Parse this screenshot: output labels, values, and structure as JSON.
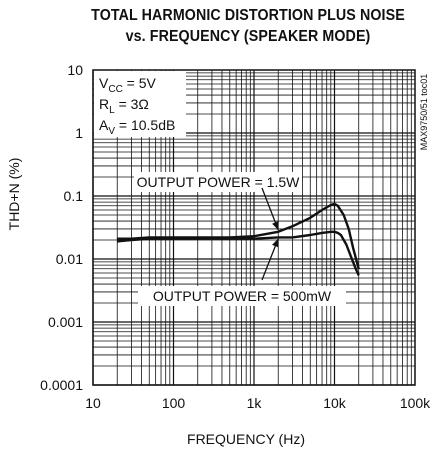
{
  "chart_data": {
    "type": "line",
    "title": [
      "TOTAL HARMONIC DISTORTION PLUS NOISE",
      "vs. FREQUENCY (SPEAKER MODE)"
    ],
    "xlabel": "FREQUENCY (Hz)",
    "ylabel": "THD+N (%)",
    "x_scale": "log",
    "y_scale": "log",
    "xlim": [
      10,
      100000
    ],
    "ylim": [
      0.0001,
      10
    ],
    "x_ticks": [
      10,
      100,
      1000,
      10000,
      100000
    ],
    "x_tick_labels": [
      "10",
      "100",
      "1k",
      "10k",
      "100k"
    ],
    "y_ticks": [
      0.0001,
      0.001,
      0.01,
      0.1,
      1,
      10
    ],
    "y_tick_labels": [
      "0.0001",
      "0.001",
      "0.01",
      "0.1",
      "1",
      "10"
    ],
    "grid": true,
    "conditions": [
      {
        "main": "V",
        "sub": "CC",
        "rest": " = 5V"
      },
      {
        "main": "R",
        "sub": "L",
        "rest": " = 3Ω"
      },
      {
        "main": "A",
        "sub": "V",
        "rest": " = 10.5dB"
      }
    ],
    "part_number": "MAX9750/51 toc01",
    "series": [
      {
        "name": "OUTPUT POWER = 1.5W",
        "x": [
          20,
          30,
          50,
          100,
          200,
          500,
          1000,
          2000,
          3000,
          5000,
          7000,
          9000,
          10000,
          11000,
          13000,
          15000,
          17000,
          20000
        ],
        "y": [
          0.021,
          0.021,
          0.022,
          0.022,
          0.022,
          0.022,
          0.023,
          0.027,
          0.033,
          0.045,
          0.06,
          0.072,
          0.075,
          0.07,
          0.05,
          0.03,
          0.015,
          0.007
        ]
      },
      {
        "name": "OUTPUT POWER = 500mW",
        "x": [
          20,
          30,
          50,
          100,
          200,
          500,
          1000,
          2000,
          3000,
          5000,
          7000,
          9000,
          10000,
          11000,
          12000,
          14000,
          16000,
          18000,
          20000
        ],
        "y": [
          0.019,
          0.02,
          0.021,
          0.021,
          0.021,
          0.021,
          0.021,
          0.022,
          0.022,
          0.024,
          0.026,
          0.027,
          0.027,
          0.026,
          0.024,
          0.017,
          0.011,
          0.0075,
          0.0055
        ]
      }
    ]
  }
}
